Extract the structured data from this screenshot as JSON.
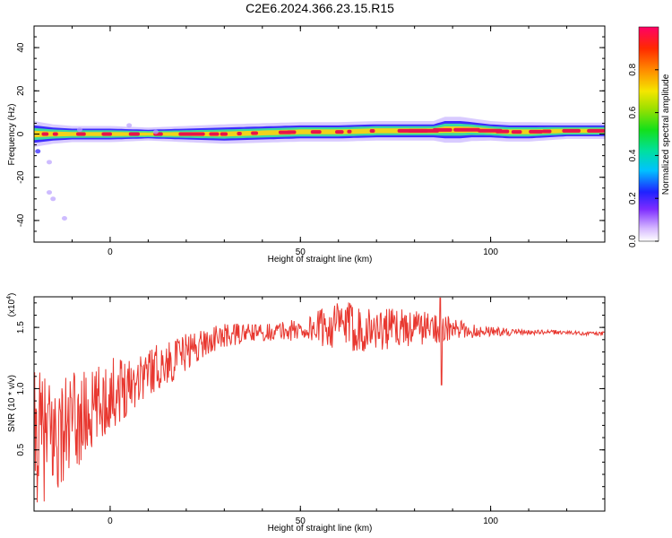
{
  "title": "C2E6.2024.366.23.15.R15",
  "colors": {
    "snr_line": "#e8372f",
    "ridge_core": "#e8144a",
    "ridge_inner": "#f2d21a",
    "ridge_mid": "#3cd9a0",
    "ridge_outer": "#2a1bff",
    "halo": "#b9a0ff"
  },
  "chart_data": [
    {
      "type": "heatmap",
      "name": "spectrogram",
      "xlabel": "Height of straight line (km)",
      "ylabel": "Frequency (Hz)",
      "xlim": [
        -20,
        130
      ],
      "ylim": [
        -50,
        50
      ],
      "xticks": [
        0,
        50,
        100
      ],
      "xtick_labels": [
        "0",
        "50",
        "100"
      ],
      "yticks": [
        -40,
        -20,
        0,
        20,
        40
      ],
      "ytick_labels": [
        "-40",
        "-20",
        "0",
        "20",
        "40"
      ],
      "ridge": {
        "x": [
          -20,
          -15,
          -10,
          -5,
          0,
          10,
          20,
          30,
          40,
          50,
          60,
          70,
          80,
          85,
          88,
          92,
          95,
          100,
          105,
          110,
          120,
          130
        ],
        "center_freq": [
          0,
          0,
          0,
          0,
          0,
          0,
          0,
          0,
          0.5,
          1,
          1,
          1.5,
          1.5,
          1.5,
          2,
          2,
          2,
          1.5,
          1,
          1,
          1.5,
          1.5
        ],
        "width_hz": [
          4,
          3,
          2.5,
          2.5,
          2.5,
          2,
          2.5,
          3,
          3,
          3,
          3,
          3,
          3,
          3,
          4,
          4,
          3.5,
          3,
          3,
          3,
          2.5,
          2.5
        ]
      },
      "colorbar": {
        "label": "Normalized spectral amplitude",
        "range": [
          0,
          1
        ],
        "ticks": [
          0.0,
          0.2,
          0.4,
          0.6,
          0.8
        ],
        "tick_labels": [
          "0.0",
          "0.2",
          "0.4",
          "0.6",
          "0.8"
        ]
      }
    },
    {
      "type": "line",
      "name": "snr",
      "xlabel": "Height of straight line (km)",
      "ylabel": "SNR (10 * v/v)",
      "scale_note": "(x10",
      "scale_exponent": "4",
      "xlim": [
        -20,
        130
      ],
      "ylim": [
        0,
        1.75
      ],
      "xticks": [
        0,
        50,
        100
      ],
      "xtick_labels": [
        "0",
        "50",
        "100"
      ],
      "yticks": [
        0.5,
        1.0,
        1.5
      ],
      "ytick_labels": [
        "0.5",
        "1.0",
        "1.5"
      ],
      "envelope": {
        "x": [
          -20,
          -15,
          -10,
          -5,
          0,
          5,
          10,
          15,
          20,
          25,
          30,
          35,
          40,
          45,
          50,
          55,
          60,
          65,
          70,
          75,
          80,
          85,
          90,
          95,
          100,
          105,
          110,
          115,
          120,
          125,
          130
        ],
        "mean": [
          0.6,
          0.6,
          0.7,
          0.8,
          0.95,
          1.05,
          1.15,
          1.2,
          1.3,
          1.38,
          1.43,
          1.45,
          1.46,
          1.47,
          1.48,
          1.5,
          1.52,
          1.5,
          1.48,
          1.5,
          1.5,
          1.5,
          1.48,
          1.47,
          1.47,
          1.46,
          1.46,
          1.46,
          1.46,
          1.45,
          1.45
        ],
        "spread": [
          0.55,
          0.5,
          0.45,
          0.35,
          0.3,
          0.25,
          0.2,
          0.18,
          0.15,
          0.12,
          0.1,
          0.08,
          0.07,
          0.08,
          0.1,
          0.15,
          0.2,
          0.2,
          0.18,
          0.16,
          0.15,
          0.13,
          0.1,
          0.06,
          0.04,
          0.03,
          0.02,
          0.02,
          0.015,
          0.015,
          0.015
        ]
      }
    }
  ]
}
